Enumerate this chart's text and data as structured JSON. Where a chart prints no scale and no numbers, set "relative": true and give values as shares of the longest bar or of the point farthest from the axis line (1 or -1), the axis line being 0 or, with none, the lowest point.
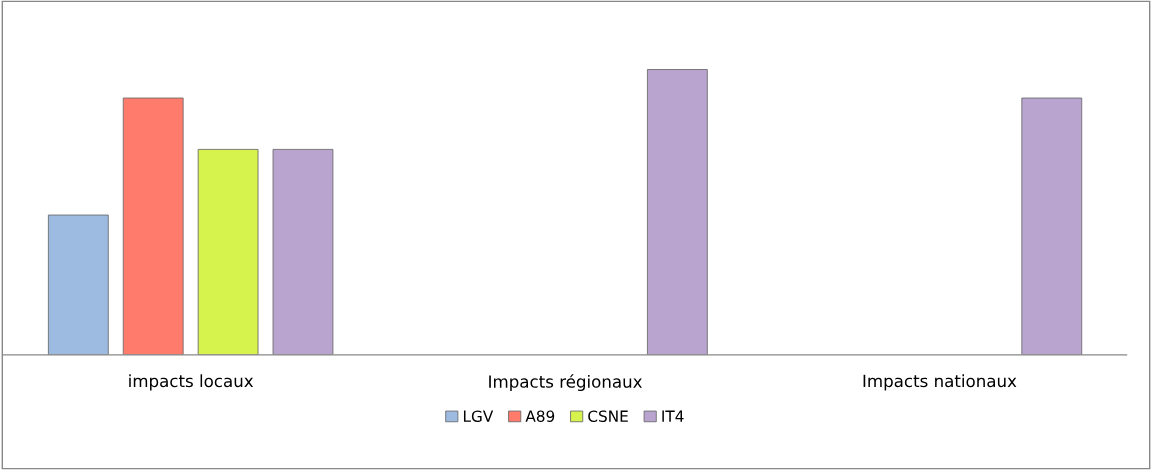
{
  "chart_data": {
    "type": "bar",
    "relative": true,
    "categories": [
      "impacts locaux",
      "Impacts régionaux",
      "Impacts nationaux"
    ],
    "series": [
      {
        "name": "LGV",
        "color": "#9dbbe0",
        "values": [
          0.49,
          null,
          null
        ]
      },
      {
        "name": "A89",
        "color": "#ff7b6b",
        "values": [
          0.9,
          null,
          null
        ]
      },
      {
        "name": "CSNE",
        "color": "#d6f24c",
        "values": [
          0.72,
          null,
          null
        ]
      },
      {
        "name": "IT4",
        "color": "#b8a4cf",
        "values": [
          0.72,
          1,
          0.9
        ]
      }
    ],
    "grid": false,
    "legend": "bottom"
  }
}
